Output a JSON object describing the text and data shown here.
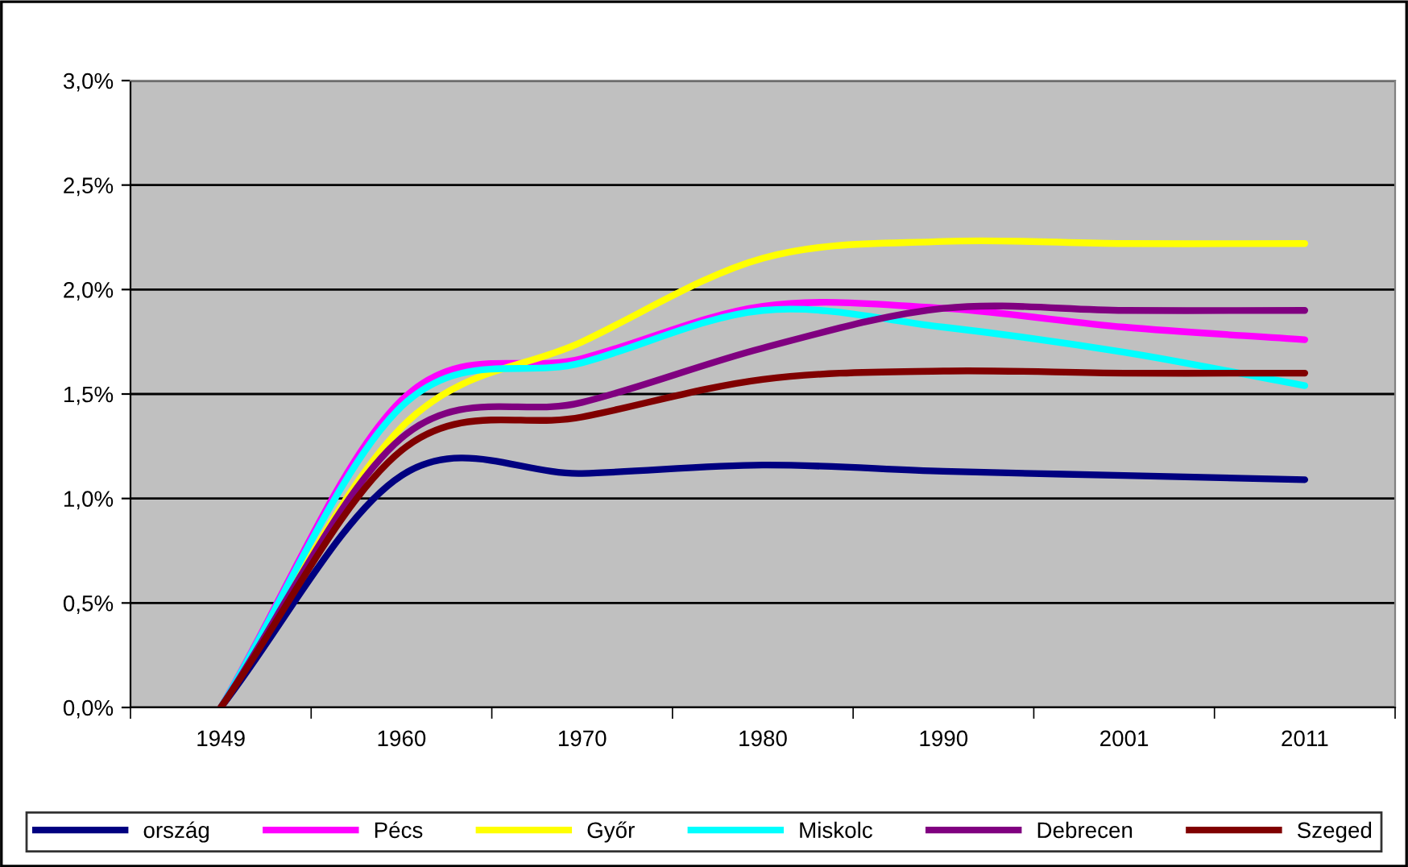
{
  "chart_data": {
    "type": "line",
    "categories": [
      "1949",
      "1960",
      "1970",
      "1980",
      "1990",
      "2001",
      "2011"
    ],
    "series": [
      {
        "name": "ország",
        "color": "#000080",
        "values": [
          0,
          1.11,
          1.12,
          1.16,
          1.13,
          1.11,
          1.09
        ]
      },
      {
        "name": "Pécs",
        "color": "#ff00ff",
        "values": [
          0,
          1.47,
          1.67,
          1.92,
          1.91,
          1.82,
          1.76
        ]
      },
      {
        "name": "Győr",
        "color": "#ffff00",
        "values": [
          0,
          1.34,
          1.75,
          2.15,
          2.23,
          2.22,
          2.22
        ]
      },
      {
        "name": "Miskolc",
        "color": "#00ffff",
        "values": [
          0,
          1.44,
          1.65,
          1.9,
          1.82,
          1.7,
          1.54
        ]
      },
      {
        "name": "Debrecen",
        "color": "#800080",
        "values": [
          0,
          1.29,
          1.46,
          1.72,
          1.91,
          1.9,
          1.9
        ]
      },
      {
        "name": "Szeged",
        "color": "#800000",
        "values": [
          0,
          1.23,
          1.39,
          1.57,
          1.61,
          1.6,
          1.6
        ]
      }
    ],
    "ylim": [
      0,
      3
    ],
    "yticks": [
      {
        "value": 0,
        "label": "0,0%"
      },
      {
        "value": 0.5,
        "label": "0,5%"
      },
      {
        "value": 1,
        "label": "1,0%"
      },
      {
        "value": 1.5,
        "label": "1,5%"
      },
      {
        "value": 2,
        "label": "2,0%"
      },
      {
        "value": 2.5,
        "label": "2,5%"
      },
      {
        "value": 3,
        "label": "3,0%"
      }
    ],
    "grid": "y",
    "legend": "bottom",
    "marker": "none",
    "line_style": "solid"
  }
}
